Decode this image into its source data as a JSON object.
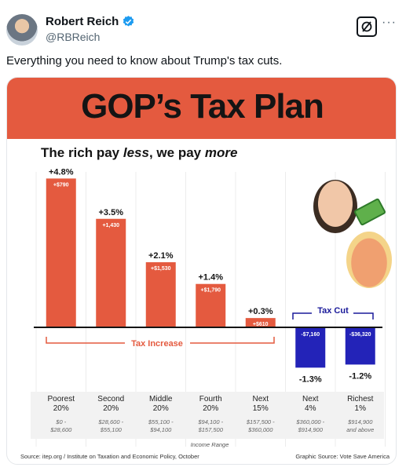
{
  "post": {
    "display_name": "Robert Reich",
    "handle": "@RBReich",
    "text": "Everything you need to know about Trump's tax cuts.",
    "more": "···",
    "colors": {
      "verified": "#1d9bf0",
      "accent": "#e45a3f",
      "bar_red": "#e45a3f",
      "bar_blue": "#2323b8"
    }
  },
  "graphic": {
    "title": "GOP’s Tax Plan",
    "subtitle_parts": [
      "The rich pay ",
      "less",
      ", we pay ",
      "more"
    ],
    "tax_increase_label": "Tax Increase",
    "tax_cut_label": "Tax Cut",
    "axis_title": "Income Range",
    "source_left": "Source: itep.org / Institute on Taxation and Economic Policy, October",
    "source_right": "Graphic Source: Vote Save America"
  },
  "chart_data": {
    "type": "bar",
    "categories": [
      "Poorest 20%",
      "Second 20%",
      "Middle 20%",
      "Fourth 20%",
      "Next 15%",
      "Next 4%",
      "Richest 1%"
    ],
    "group_top": [
      "Poorest",
      "Second",
      "Middle",
      "Fourth",
      "Next",
      "Next",
      "Richest"
    ],
    "group_bottom": [
      "20%",
      "20%",
      "20%",
      "20%",
      "15%",
      "4%",
      "1%"
    ],
    "ranges": [
      [
        "$0 -",
        "$28,600"
      ],
      [
        "$28,600 -",
        "$55,100"
      ],
      [
        "$55,100 -",
        "$94,100"
      ],
      [
        "$94,100 -",
        "$157,500"
      ],
      [
        "$157,500 -",
        "$360,000"
      ],
      [
        "$360,000 -",
        "$914,900"
      ],
      [
        "$914,900",
        "and above"
      ]
    ],
    "values": [
      4.8,
      3.5,
      2.1,
      1.4,
      0.3,
      -1.3,
      -1.2
    ],
    "value_labels": [
      "+4.8%",
      "+3.5%",
      "+2.1%",
      "+1.4%",
      "+0.3%",
      "-1.3%",
      "-1.2%"
    ],
    "dollar_labels": [
      "+$790",
      "+1,430",
      "+$1,530",
      "+$1,790",
      "+$610",
      "-$7,160",
      "-$36,320"
    ],
    "xlabel": "Income Range",
    "ylim": [
      -1.6,
      5.0
    ]
  }
}
